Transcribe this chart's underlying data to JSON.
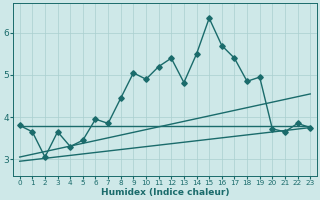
{
  "xlabel": "Humidex (Indice chaleur)",
  "bg_color": "#cee8e8",
  "grid_color": "#aacfcf",
  "line_color": "#1a6b6b",
  "xlim": [
    -0.5,
    23.5
  ],
  "ylim": [
    2.6,
    6.7
  ],
  "xticks": [
    0,
    1,
    2,
    3,
    4,
    5,
    6,
    7,
    8,
    9,
    10,
    11,
    12,
    13,
    14,
    15,
    16,
    17,
    18,
    19,
    20,
    21,
    22,
    23
  ],
  "yticks": [
    3,
    4,
    5,
    6
  ],
  "series1_x": [
    0,
    1,
    2,
    3,
    4,
    5,
    6,
    7,
    8,
    9,
    10,
    11,
    12,
    13,
    14,
    15,
    16,
    17,
    18,
    19,
    20,
    21,
    22,
    23
  ],
  "series1_y": [
    3.8,
    3.65,
    3.05,
    3.65,
    3.3,
    3.45,
    3.95,
    3.85,
    4.45,
    5.05,
    4.9,
    5.2,
    5.4,
    4.82,
    5.5,
    6.35,
    5.7,
    5.4,
    4.85,
    4.95,
    3.72,
    3.65,
    3.85,
    3.75
  ],
  "series2_x": [
    0,
    23
  ],
  "series2_y": [
    3.78,
    3.78
  ],
  "series3_x": [
    0,
    23
  ],
  "series3_y": [
    3.05,
    4.55
  ],
  "series4_x": [
    0,
    23
  ],
  "series4_y": [
    2.95,
    3.75
  ],
  "marker_size": 2.8,
  "line_width": 1.0
}
